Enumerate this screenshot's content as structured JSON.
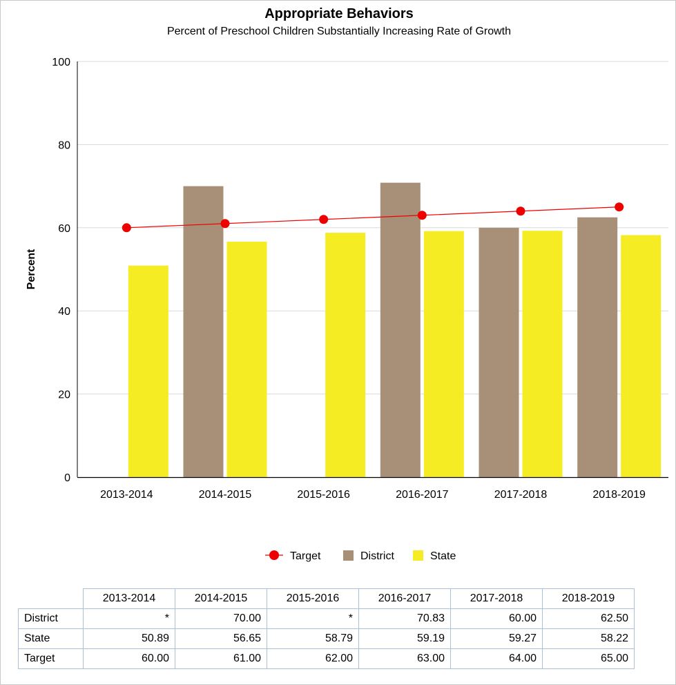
{
  "chart_data": {
    "type": "bar",
    "title": "Appropriate Behaviors",
    "subtitle": "Percent of Preschool Children Substantially Increasing Rate of Growth",
    "xlabel": "",
    "ylabel": "Percent",
    "ylim": [
      0,
      100
    ],
    "yticks": [
      0,
      20,
      40,
      60,
      80,
      100
    ],
    "grid": true,
    "legend_position": "bottom",
    "categories": [
      "2013-2014",
      "2014-2015",
      "2015-2016",
      "2016-2017",
      "2017-2018",
      "2018-2019"
    ],
    "series": [
      {
        "name": "District",
        "type": "bar",
        "color": "#a89078",
        "values": [
          null,
          70.0,
          null,
          70.83,
          60.0,
          62.5
        ]
      },
      {
        "name": "State",
        "type": "bar",
        "color": "#f6ec23",
        "values": [
          50.89,
          56.65,
          58.79,
          59.19,
          59.27,
          58.22
        ]
      },
      {
        "name": "Target",
        "type": "line",
        "color": "#ee0000",
        "values": [
          60.0,
          61.0,
          62.0,
          63.0,
          64.0,
          65.0
        ]
      }
    ],
    "legend": [
      "Target",
      "District",
      "State"
    ]
  },
  "table": {
    "headers": [
      "2013-2014",
      "2014-2015",
      "2015-2016",
      "2016-2017",
      "2017-2018",
      "2018-2019"
    ],
    "rows": [
      {
        "label": "District",
        "cells": [
          "*",
          "70.00",
          "*",
          "70.83",
          "60.00",
          "62.50"
        ]
      },
      {
        "label": "State",
        "cells": [
          "50.89",
          "56.65",
          "58.79",
          "59.19",
          "59.27",
          "58.22"
        ]
      },
      {
        "label": "Target",
        "cells": [
          "60.00",
          "61.00",
          "62.00",
          "63.00",
          "64.00",
          "65.00"
        ]
      }
    ]
  }
}
